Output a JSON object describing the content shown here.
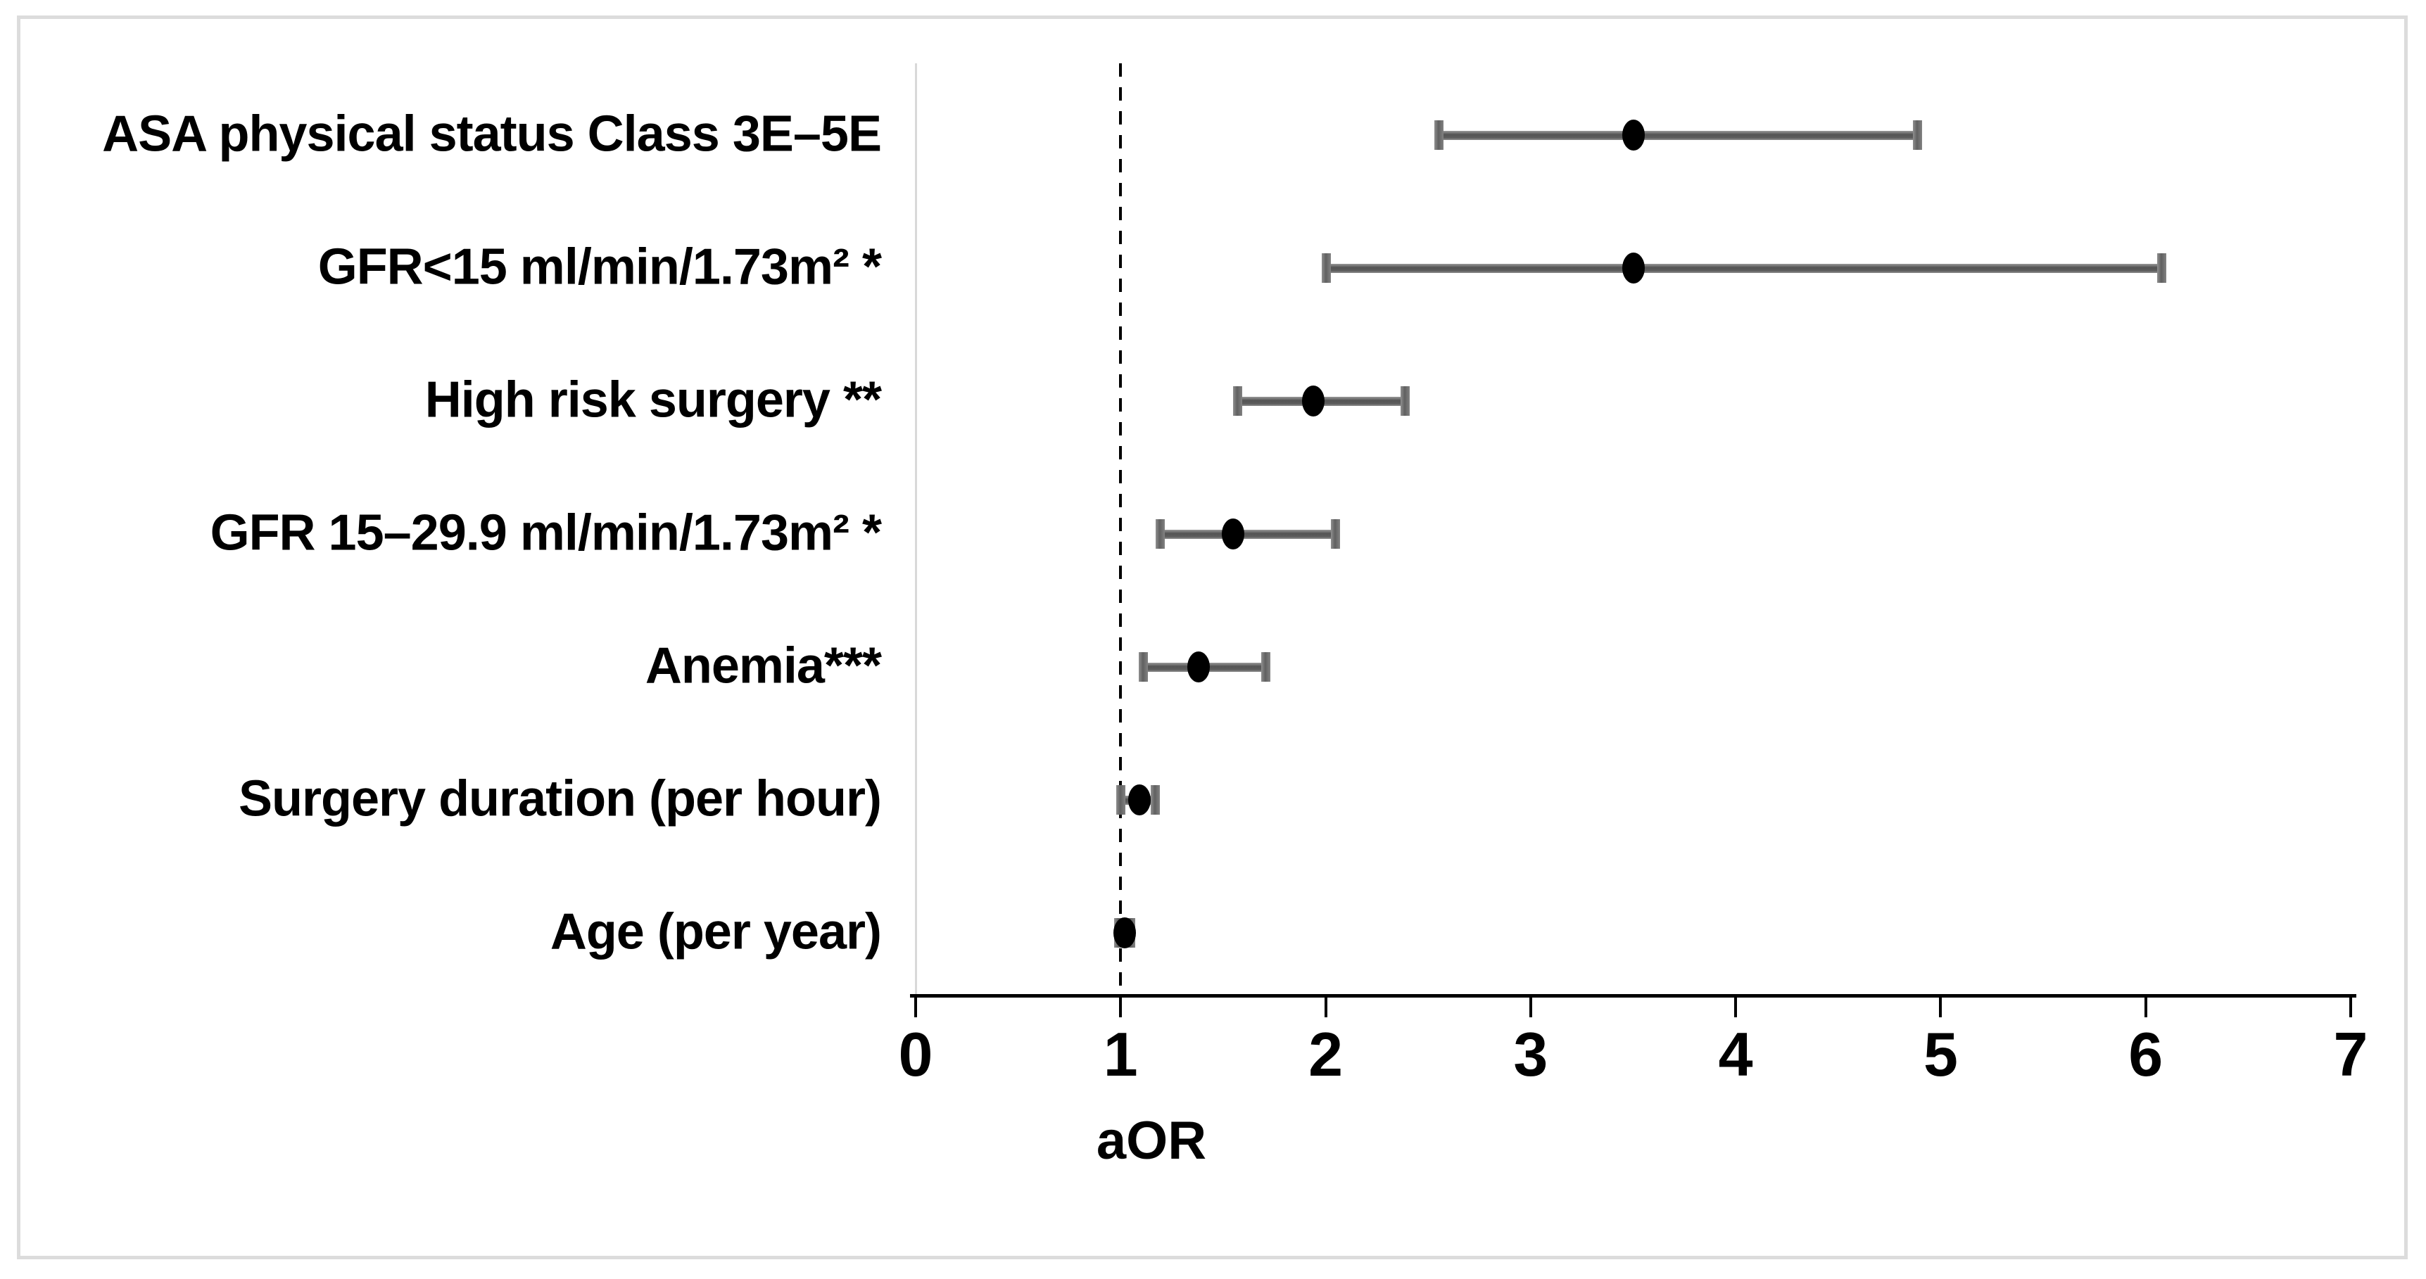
{
  "figure": {
    "background": "#ffffff",
    "frame_border_color": "#dcdcdc"
  },
  "chart_data": {
    "type": "scatter",
    "subtype": "forest-plot",
    "orientation": "horizontal",
    "title": "",
    "xlabel": "aOR",
    "ylabel": "",
    "xlim": [
      0,
      7
    ],
    "x_ticks": [
      "0",
      "1",
      "2",
      "3",
      "4",
      "5",
      "6",
      "7"
    ],
    "grid": false,
    "legend_position": "none",
    "reference_line_x": 1,
    "reference_line_style": "dashed",
    "categories": [
      "ASA physical status Class 3E–5E",
      "GFR<15 ml/min/1.73m² *",
      "High risk surgery **",
      "GFR 15–29.9 ml/min/1.73m² *",
      "Anemia***",
      "Surgery duration (per hour)",
      "Age (per year)"
    ],
    "series": [
      {
        "points": [
          3.5,
          3.5,
          1.94,
          1.55,
          1.38,
          1.09,
          1.02
        ],
        "ci_low": [
          2.55,
          2.0,
          1.57,
          1.19,
          1.11,
          1.0,
          0.99
        ],
        "ci_high": [
          4.89,
          6.08,
          2.39,
          2.05,
          1.71,
          1.17,
          1.05
        ]
      }
    ],
    "colors": {
      "point": "#000000",
      "error_bar": "#5a5a5a",
      "error_bar_cap": "#6e6e6e",
      "reference_line": "#000000",
      "axis": "#000000",
      "y_axis_line": "#d9d9d9",
      "text": "#000000"
    }
  }
}
